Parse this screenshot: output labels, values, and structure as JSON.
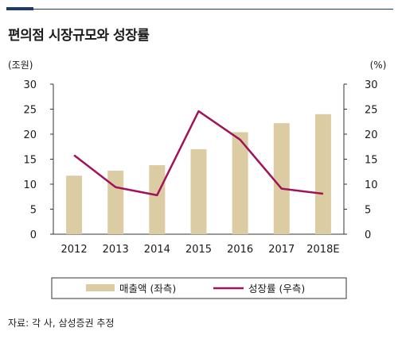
{
  "title": "편의점 시장규모와 성장률",
  "source": "자료: 각 사, 삼성증권 추정",
  "colors": {
    "bar": "#dccca3",
    "line": "#a0135a",
    "accent": "#1c3a6e"
  },
  "chart_data": {
    "type": "bar",
    "categories": [
      "2012",
      "2013",
      "2014",
      "2015",
      "2016",
      "2017",
      "2018E"
    ],
    "series": [
      {
        "name": "매출액 (좌측)",
        "type": "bar",
        "axis": "left",
        "values": [
          11.7,
          12.7,
          13.8,
          17.0,
          20.4,
          22.2,
          24.0
        ]
      },
      {
        "name": "성장률 (우측)",
        "type": "line",
        "axis": "right",
        "values": [
          15.8,
          9.4,
          7.8,
          24.6,
          18.9,
          9.1,
          8.1
        ]
      }
    ],
    "yleft": {
      "unit": "(조원)",
      "ylim": [
        0,
        30
      ],
      "ticks": [
        0,
        5,
        10,
        15,
        20,
        25,
        30
      ]
    },
    "yright": {
      "unit": "(%)",
      "ylim": [
        0,
        30
      ],
      "ticks": [
        0,
        5,
        10,
        15,
        20,
        25,
        30
      ]
    },
    "legend_position": "bottom",
    "grid": false
  }
}
